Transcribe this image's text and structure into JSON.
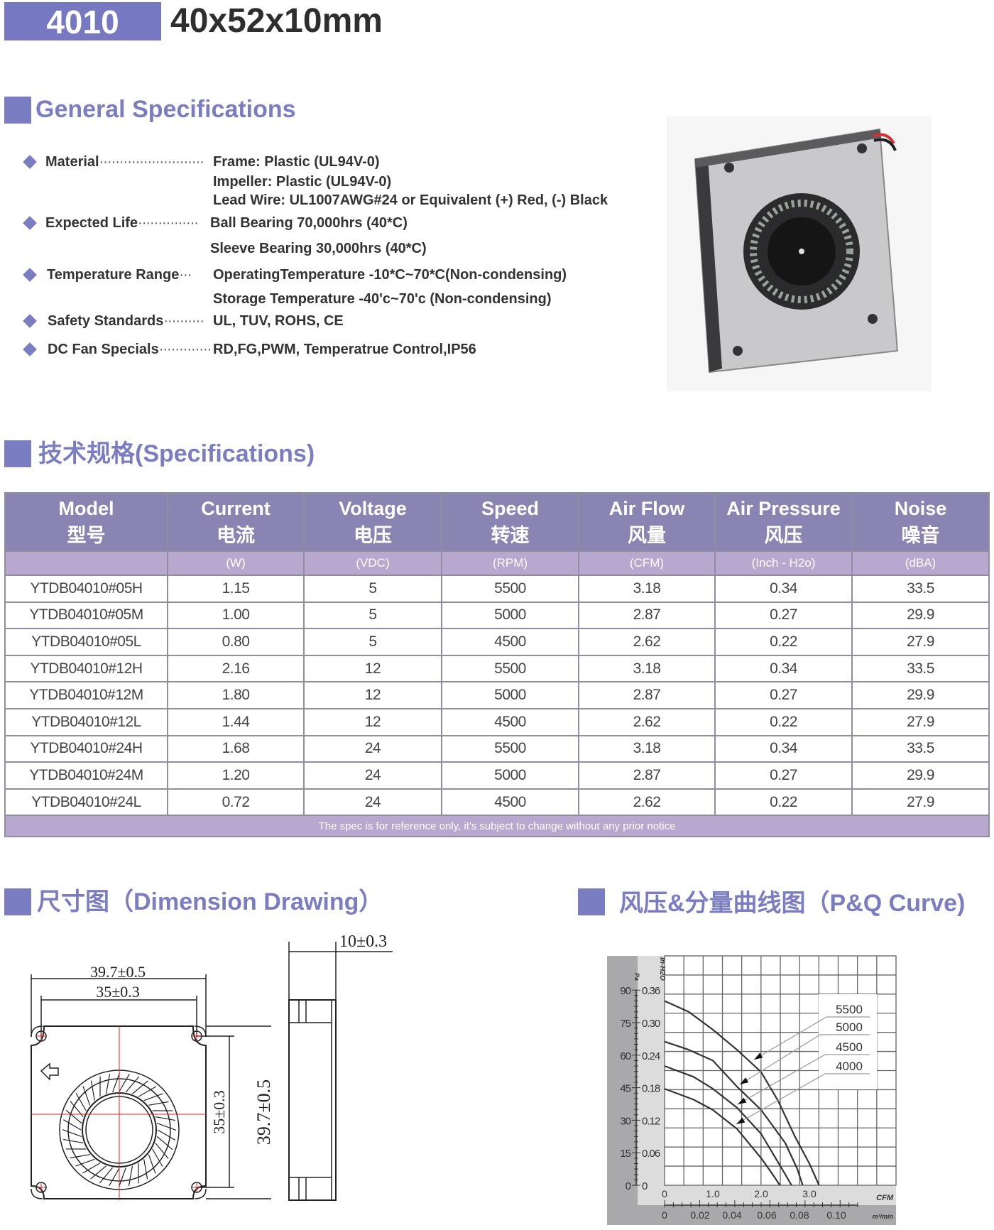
{
  "header": {
    "model_code": "4010",
    "size": "40x52x10mm"
  },
  "colors": {
    "accent": "#7b7dc2",
    "table_header": "#8984b2",
    "table_unit_row": "#b8a7cf"
  },
  "general": {
    "title": "General Specifications",
    "items": [
      {
        "label": "Material",
        "values": [
          "Frame: Plastic (UL94V-0)",
          "Impeller: Plastic (UL94V-0)",
          "Lead Wire: UL1007AWG#24 or Equivalent (+) Red, (-) Black"
        ]
      },
      {
        "label": "Expected Life",
        "values": [
          "Ball Bearing 70,000hrs (40*C)",
          "Sleeve Bearing 30,000hrs (40*C)"
        ]
      },
      {
        "label": "Temperature Range",
        "values": [
          "OperatingTemperature -10*C~70*C(Non-condensing)",
          "Storage Temperature -40'c~70'c (Non-condensing)"
        ]
      },
      {
        "label": "Safety Standards",
        "values": [
          "UL, TUV, ROHS, CE"
        ]
      },
      {
        "label": "DC Fan Specials",
        "values": [
          "RD,FG,PWM, Temperatrue Control,IP56"
        ]
      }
    ],
    "product_image": "fan-photo"
  },
  "specs": {
    "title": "技术规格(Specifications)",
    "columns": [
      {
        "en": "Model",
        "cn": "型号",
        "unit": ""
      },
      {
        "en": "Current",
        "cn": "电流",
        "unit": "(W)"
      },
      {
        "en": "Voltage",
        "cn": "电压",
        "unit": "(VDC)"
      },
      {
        "en": "Speed",
        "cn": "转速",
        "unit": "(RPM)"
      },
      {
        "en": "Air Flow",
        "cn": "风量",
        "unit": "(CFM)"
      },
      {
        "en": "Air Pressure",
        "cn": "风压",
        "unit": "(Inch - H2o)"
      },
      {
        "en": "Noise",
        "cn": "噪音",
        "unit": "(dBA)"
      }
    ],
    "rows": [
      [
        "YTDB04010#05H",
        "1.15",
        "5",
        "5500",
        "3.18",
        "0.34",
        "33.5"
      ],
      [
        "YTDB04010#05M",
        "1.00",
        "5",
        "5000",
        "2.87",
        "0.27",
        "29.9"
      ],
      [
        "YTDB04010#05L",
        "0.80",
        "5",
        "4500",
        "2.62",
        "0.22",
        "27.9"
      ],
      [
        "YTDB04010#12H",
        "2.16",
        "12",
        "5500",
        "3.18",
        "0.34",
        "33.5"
      ],
      [
        "YTDB04010#12M",
        "1.80",
        "12",
        "5000",
        "2.87",
        "0.27",
        "29.9"
      ],
      [
        "YTDB04010#12L",
        "1.44",
        "12",
        "4500",
        "2.62",
        "0.22",
        "27.9"
      ],
      [
        "YTDB04010#24H",
        "1.68",
        "24",
        "5500",
        "3.18",
        "0.34",
        "33.5"
      ],
      [
        "YTDB04010#24M",
        "1.20",
        "24",
        "5000",
        "2.87",
        "0.27",
        "29.9"
      ],
      [
        "YTDB04010#24L",
        "0.72",
        "24",
        "4500",
        "2.62",
        "0.22",
        "27.9"
      ]
    ],
    "footnote": "The spec is for reference only, it's subject to change without any prior notice"
  },
  "dimension": {
    "title": "尺寸图（Dimension Drawing）",
    "width_outer": "39.7±0.5",
    "width_hole": "35±0.3",
    "height_hole": "35±0.3",
    "height_outer": "39.7±0.5",
    "thickness": "10±0.3"
  },
  "pq": {
    "title": "风压&分量曲线图（P&Q Curve)"
  },
  "chart_data": {
    "type": "line",
    "xlabel": "CFM",
    "x2label": "m³/min",
    "ylabel": "In-H2O",
    "y2label": "Pa",
    "xlim": [
      0,
      4.8
    ],
    "ylim": [
      0,
      0.42
    ],
    "grid": true,
    "legend": "top-right",
    "x_ticks": [
      "0",
      "1.0",
      "2.0",
      "3.0"
    ],
    "x2_ticks": [
      "0",
      "0.02",
      "0.04",
      "0.06",
      "0.08",
      "0.10"
    ],
    "y_ticks": [
      "0",
      "0.06",
      "0.12",
      "0.18",
      "0.24",
      "0.30",
      "0.36"
    ],
    "y2_ticks": [
      "0",
      "15",
      "30",
      "45",
      "60",
      "75",
      "90"
    ],
    "series": [
      {
        "name": "5500",
        "x": [
          0,
          0.5,
          1.0,
          1.5,
          2.0,
          2.35,
          2.7,
          3.0,
          3.2
        ],
        "y": [
          0.34,
          0.32,
          0.287,
          0.25,
          0.209,
          0.156,
          0.09,
          0.04,
          0
        ]
      },
      {
        "name": "5000",
        "x": [
          0,
          0.5,
          1.0,
          1.5,
          2.0,
          2.5,
          2.75,
          2.86
        ],
        "y": [
          0.265,
          0.25,
          0.23,
          0.182,
          0.139,
          0.078,
          0.03,
          0
        ]
      },
      {
        "name": "4500",
        "x": [
          0,
          0.6,
          1.0,
          1.5,
          2.0,
          2.3,
          2.5,
          2.63
        ],
        "y": [
          0.22,
          0.2,
          0.178,
          0.143,
          0.095,
          0.05,
          0.02,
          0
        ]
      },
      {
        "name": "4000",
        "x": [
          0,
          0.6,
          1.0,
          1.5,
          2.0,
          2.2,
          2.39
        ],
        "y": [
          0.178,
          0.158,
          0.139,
          0.104,
          0.05,
          0.025,
          0
        ]
      }
    ]
  }
}
